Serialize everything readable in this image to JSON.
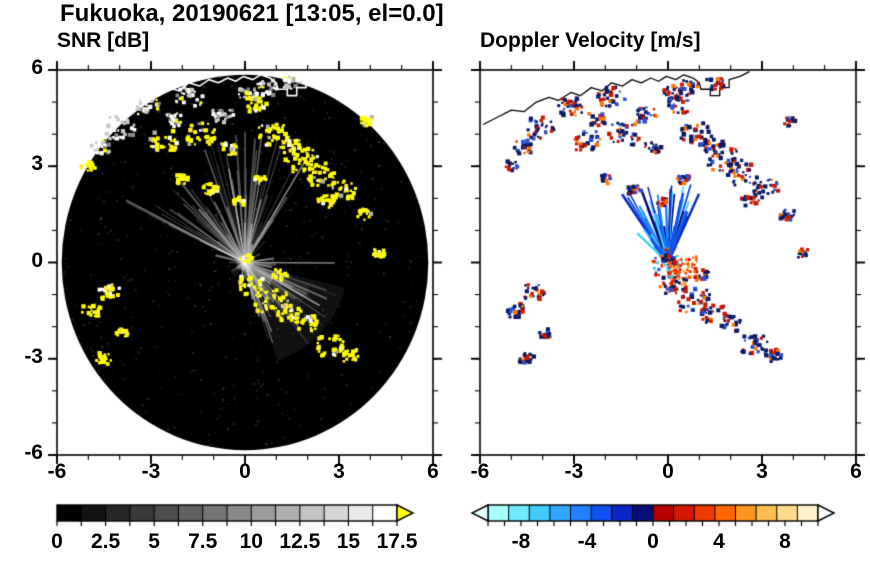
{
  "figure": {
    "title": "Fukuoka, 20190621 [13:05, el=0.0]"
  },
  "panels": [
    {
      "title": "SNR [dB]"
    },
    {
      "title": "Doppler Velocity [m/s]"
    }
  ],
  "shared": {
    "coastline": [
      [
        -5.9,
        4.3
      ],
      [
        -5.4,
        4.55
      ],
      [
        -5.0,
        4.75
      ],
      [
        -4.6,
        4.7
      ],
      [
        -4.2,
        5.0
      ],
      [
        -3.8,
        5.15
      ],
      [
        -3.5,
        5.05
      ],
      [
        -3.1,
        5.3
      ],
      [
        -2.8,
        5.2
      ],
      [
        -2.45,
        5.45
      ],
      [
        -2.1,
        5.35
      ],
      [
        -1.8,
        5.6
      ],
      [
        -1.45,
        5.5
      ],
      [
        -1.15,
        5.7
      ],
      [
        -0.85,
        5.6
      ],
      [
        -0.55,
        5.75
      ],
      [
        -0.3,
        5.65
      ],
      [
        -0.05,
        5.8
      ],
      [
        0.25,
        5.7
      ],
      [
        0.5,
        5.85
      ],
      [
        0.8,
        5.75
      ],
      [
        1.0,
        5.6
      ],
      [
        1.05,
        5.4
      ],
      [
        1.35,
        5.4
      ],
      [
        1.35,
        5.2
      ],
      [
        1.65,
        5.2
      ],
      [
        1.65,
        5.45
      ],
      [
        1.95,
        5.45
      ],
      [
        1.95,
        5.7
      ],
      [
        2.3,
        5.8
      ],
      [
        2.6,
        5.95
      ]
    ],
    "echo_clusters": [
      [
        -4.0,
        4.2,
        0.5,
        "coast"
      ],
      [
        -3.1,
        4.85,
        0.4,
        "coast"
      ],
      [
        -2.3,
        4.45,
        0.3,
        "coast"
      ],
      [
        -1.8,
        5.15,
        0.45,
        "coast"
      ],
      [
        -0.7,
        4.6,
        0.35,
        "coast"
      ],
      [
        0.1,
        5.3,
        0.3,
        "coast"
      ],
      [
        0.65,
        5.45,
        0.35,
        "coast"
      ],
      [
        1.5,
        5.6,
        0.3,
        "coast"
      ],
      [
        -4.6,
        3.6,
        0.3,
        "coast"
      ],
      [
        -2.6,
        3.8,
        0.45,
        "strong"
      ],
      [
        -1.4,
        4.0,
        0.5,
        "strong"
      ],
      [
        -0.5,
        3.55,
        0.3,
        "strong"
      ],
      [
        0.35,
        4.9,
        0.35,
        "strong"
      ],
      [
        0.9,
        4.0,
        0.5,
        "strong"
      ],
      [
        1.45,
        3.6,
        0.35,
        "strong"
      ],
      [
        1.8,
        3.2,
        0.55,
        "strong"
      ],
      [
        2.4,
        2.75,
        0.5,
        "strong"
      ],
      [
        3.1,
        2.3,
        0.45,
        "strong"
      ],
      [
        3.8,
        1.5,
        0.25,
        "strong"
      ],
      [
        2.6,
        1.9,
        0.3,
        "strong"
      ],
      [
        -1.1,
        2.3,
        0.25,
        "strong"
      ],
      [
        -2.0,
        2.6,
        0.2,
        "strong"
      ],
      [
        -5.0,
        3.0,
        0.22,
        "strong"
      ],
      [
        0.2,
        -0.75,
        0.45,
        "strong"
      ],
      [
        0.85,
        -1.2,
        0.55,
        "strong"
      ],
      [
        1.45,
        -1.6,
        0.4,
        "strong"
      ],
      [
        2.0,
        -1.9,
        0.35,
        "strong"
      ],
      [
        2.75,
        -2.6,
        0.45,
        "strong"
      ],
      [
        3.35,
        -2.9,
        0.28,
        "strong"
      ],
      [
        -4.3,
        -0.9,
        0.35,
        "strong"
      ],
      [
        -4.9,
        -1.5,
        0.3,
        "strong"
      ],
      [
        -4.5,
        -3.0,
        0.25,
        "strong"
      ],
      [
        -3.9,
        -2.2,
        0.2,
        "strong"
      ],
      [
        0.05,
        0.1,
        0.22,
        "strong"
      ],
      [
        1.1,
        -0.4,
        0.25,
        "strong"
      ],
      [
        4.3,
        0.3,
        0.2,
        "strong"
      ],
      [
        3.9,
        4.4,
        0.2,
        "strong"
      ],
      [
        -0.2,
        1.9,
        0.18,
        "strong"
      ],
      [
        0.5,
        2.6,
        0.2,
        "strong"
      ]
    ]
  },
  "chart_data": [
    {
      "type": "heatmap",
      "title": "SNR [dB]",
      "xlabel": "",
      "ylabel": "",
      "xlim": [
        -6,
        6
      ],
      "ylim": [
        -6,
        6
      ],
      "xticks": [
        [
          -6,
          "-6"
        ],
        [
          -3,
          "-3"
        ],
        [
          0,
          "0"
        ],
        [
          3,
          "3"
        ],
        [
          6,
          "6"
        ]
      ],
      "yticks": [
        [
          -6,
          "-6"
        ],
        [
          -3,
          "-3"
        ],
        [
          0,
          "0"
        ],
        [
          3,
          "3"
        ],
        [
          6,
          "6"
        ]
      ],
      "minor_tick_step": 1,
      "grid": false,
      "background": "#ffffff",
      "scan_disk": {
        "center": [
          0,
          0
        ],
        "radius": 5.85,
        "color": "#000000"
      },
      "coastline_color": "#ffffff",
      "clutter_spokes": [
        {
          "angle_deg": 105,
          "spread_deg": 50,
          "count": 75,
          "len_min": 1.0,
          "len_max": 4.3
        },
        {
          "angle_deg": -40,
          "spread_deg": 42,
          "count": 50,
          "len_min": 0.6,
          "len_max": 3.3
        },
        {
          "angle_deg": 0,
          "spread_deg": 180,
          "count": 45,
          "len_min": 0.15,
          "len_max": 1.0
        }
      ],
      "echo_color_strong": "#ffff00",
      "echo_color_coast": "#ffffff",
      "colorbar": {
        "min": 0,
        "max": 17.5,
        "tick_labels": [
          [
            0,
            "0"
          ],
          [
            2.5,
            "2.5"
          ],
          [
            5,
            "5"
          ],
          [
            7.5,
            "7.5"
          ],
          [
            10,
            "10"
          ],
          [
            12.5,
            "12.5"
          ],
          [
            15,
            "15"
          ],
          [
            17.5,
            "17.5"
          ]
        ],
        "minor_tick_step": 1.25,
        "segments": [
          "#000000",
          "#131313",
          "#262626",
          "#3a3a3a",
          "#4d4d4d",
          "#616161",
          "#747474",
          "#888888",
          "#9b9b9b",
          "#afafaf",
          "#c2c2c2",
          "#d6d6d6",
          "#e9e9e9",
          "#fdfdfd"
        ],
        "over_arrow_color": "#ffff00"
      }
    },
    {
      "type": "heatmap",
      "title": "Doppler Velocity [m/s]",
      "xlabel": "",
      "ylabel": "",
      "xlim": [
        -6,
        6
      ],
      "ylim": [
        -6,
        6
      ],
      "xticks": [
        [
          -6,
          "-6"
        ],
        [
          -3,
          "-3"
        ],
        [
          0,
          "0"
        ],
        [
          3,
          "3"
        ],
        [
          6,
          "6"
        ]
      ],
      "yticks": [
        [
          -6,
          "-6"
        ],
        [
          -3,
          "-3"
        ],
        [
          0,
          "0"
        ],
        [
          3,
          "3"
        ],
        [
          6,
          "6"
        ]
      ],
      "minor_tick_step": 1,
      "grid": false,
      "background": "#ffffff",
      "coastline_color": "#000000",
      "cluster_colors": {
        "outline": "#0a1a66",
        "away": "#cc1800",
        "toward": "#2a52d8",
        "accent": "#ff7700"
      },
      "velocity_fans": [
        {
          "angle_deg": 95,
          "spread_deg": 30,
          "count": 70,
          "len_min": 0.3,
          "len_max": 2.6,
          "style": "streaks",
          "colors": [
            "#2080ff",
            "#1050f0",
            "#0828c8",
            "#40ccff",
            "#041078"
          ]
        },
        {
          "angle_deg": 128,
          "spread_deg": 10,
          "count": 15,
          "len_min": 0.3,
          "len_max": 1.6,
          "style": "streaks",
          "colors": [
            "#2080ff",
            "#1050f0",
            "#40ccff"
          ]
        },
        {
          "angle_deg": -40,
          "spread_deg": 55,
          "count": 110,
          "len_min": 0.05,
          "len_max": 0.95,
          "style": "dots",
          "colors": [
            "#d41800",
            "#ee3c00",
            "#ff6600",
            "#ff9420"
          ]
        },
        {
          "angle_deg": 0,
          "spread_deg": 180,
          "count": 60,
          "len_min": 0.05,
          "len_max": 0.55,
          "style": "dots",
          "colors": [
            "#ee4400",
            "#ff8800",
            "#cc1100",
            "#33bbcc",
            "#2255dd",
            "#55ccee"
          ]
        }
      ],
      "colorbar": {
        "min": -10,
        "max": 10,
        "tick_labels": [
          [
            -8,
            "-8"
          ],
          [
            -4,
            "-4"
          ],
          [
            0,
            "0"
          ],
          [
            4,
            "4"
          ],
          [
            8,
            "8"
          ]
        ],
        "minor_tick_step": 1,
        "segments": [
          "#aaffff",
          "#70e8ff",
          "#40ccff",
          "#30a8ff",
          "#2080ff",
          "#1050f0",
          "#0828c8",
          "#041078",
          "#b80000",
          "#d41800",
          "#ee3c00",
          "#ff6600",
          "#ff9420",
          "#ffbe50",
          "#ffdc8c",
          "#fff2c8"
        ],
        "under_arrow_color": "#e8ffff",
        "over_arrow_color": "#ffffff"
      }
    }
  ]
}
